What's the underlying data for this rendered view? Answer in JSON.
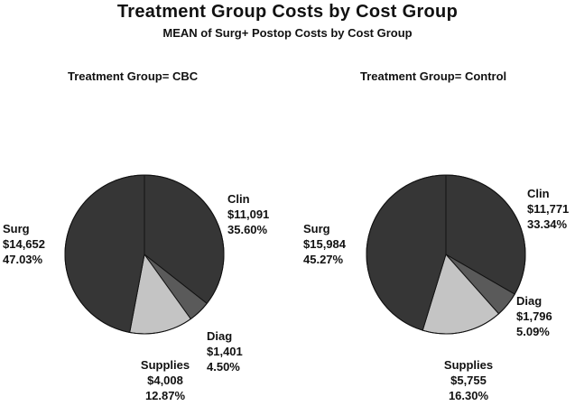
{
  "title": "Treatment Group Costs by Cost Group",
  "subtitle": "MEAN of Surg+ Postop Costs by Cost Group",
  "chart_data": [
    {
      "type": "pie",
      "panel_label": "Treatment Group= CBC",
      "slices": [
        {
          "name": "Clin",
          "amount": "$11,091",
          "percent_label": "35.60%",
          "percent": 35.6,
          "color": "#363636"
        },
        {
          "name": "Diag",
          "amount": "$1,401",
          "percent_label": "4.50%",
          "percent": 4.5,
          "color": "#5a5a5a"
        },
        {
          "name": "Supplies",
          "amount": "$4,008",
          "percent_label": "12.87%",
          "percent": 12.87,
          "color": "#c4c4c4"
        },
        {
          "name": "Surg",
          "amount": "$14,652",
          "percent_label": "47.03%",
          "percent": 47.03,
          "color": "#363636"
        }
      ]
    },
    {
      "type": "pie",
      "panel_label": "Treatment Group= Control",
      "slices": [
        {
          "name": "Clin",
          "amount": "$11,771",
          "percent_label": "33.34%",
          "percent": 33.34,
          "color": "#363636"
        },
        {
          "name": "Diag",
          "amount": "$1,796",
          "percent_label": "5.09%",
          "percent": 5.09,
          "color": "#5a5a5a"
        },
        {
          "name": "Supplies",
          "amount": "$5,755",
          "percent_label": "16.30%",
          "percent": 16.3,
          "color": "#c4c4c4"
        },
        {
          "name": "Surg",
          "amount": "$15,984",
          "percent_label": "45.27%",
          "percent": 45.27,
          "color": "#363636"
        }
      ]
    }
  ]
}
